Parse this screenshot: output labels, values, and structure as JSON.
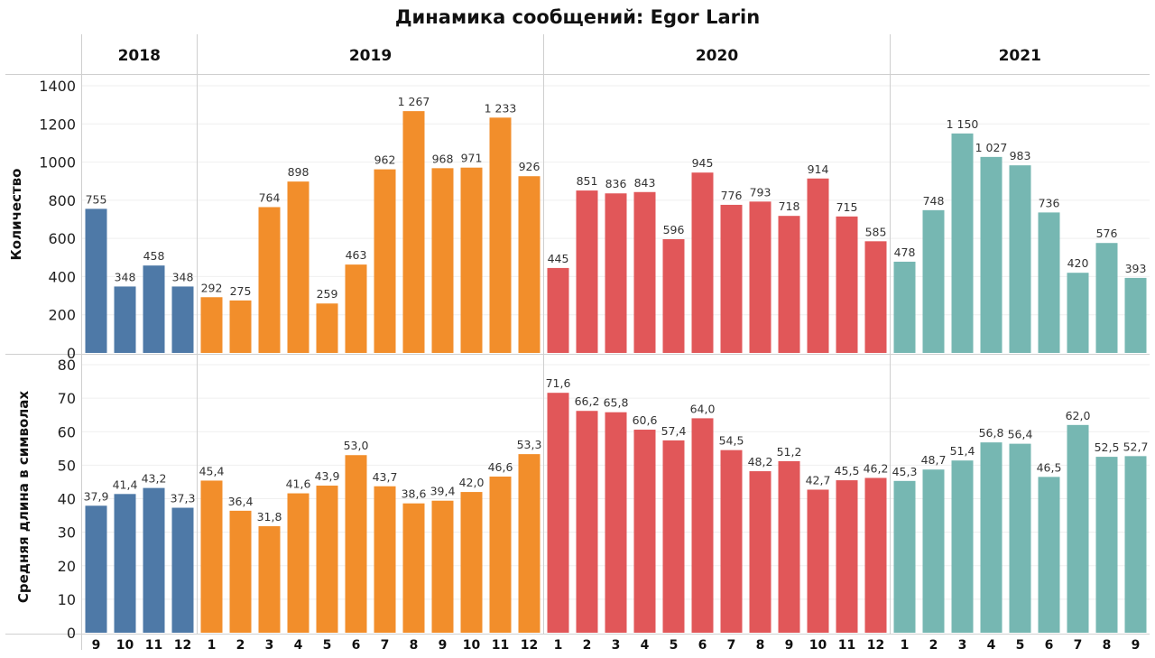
{
  "chart_data": {
    "type": "bar",
    "title": "Динамика сообщений: Egor Larin",
    "years": [
      {
        "label": "2018",
        "color": "#4E79A7",
        "months": [
          "9",
          "10",
          "11",
          "12"
        ]
      },
      {
        "label": "2019",
        "color": "#F28E2B",
        "months": [
          "1",
          "2",
          "3",
          "4",
          "5",
          "6",
          "7",
          "8",
          "9",
          "10",
          "11",
          "12"
        ]
      },
      {
        "label": "2020",
        "color": "#E15759",
        "months": [
          "1",
          "2",
          "3",
          "4",
          "5",
          "6",
          "7",
          "8",
          "9",
          "10",
          "11",
          "12"
        ]
      },
      {
        "label": "2021",
        "color": "#76B7B2",
        "months": [
          "1",
          "2",
          "3",
          "4",
          "5",
          "6",
          "7",
          "8",
          "9"
        ]
      }
    ],
    "panels": [
      {
        "ylabel": "Количество",
        "ylim": [
          0,
          1400
        ],
        "ticks": [
          "1400",
          "1200",
          "1000",
          "800",
          "600",
          "400",
          "200",
          "0"
        ],
        "values": [
          755,
          348,
          458,
          348,
          292,
          275,
          764,
          898,
          259,
          463,
          962,
          1267,
          968,
          971,
          1233,
          926,
          445,
          851,
          836,
          843,
          596,
          945,
          776,
          793,
          718,
          914,
          715,
          585,
          478,
          748,
          1150,
          1027,
          983,
          736,
          420,
          576,
          393
        ],
        "labels": [
          "755",
          "348",
          "458",
          "348",
          "292",
          "275",
          "764",
          "898",
          "259",
          "463",
          "962",
          "1 267",
          "968",
          "971",
          "1 233",
          "926",
          "445",
          "851",
          "836",
          "843",
          "596",
          "945",
          "776",
          "793",
          "718",
          "914",
          "715",
          "585",
          "478",
          "748",
          "1 150",
          "1 027",
          "983",
          "736",
          "420",
          "576",
          "393"
        ]
      },
      {
        "ylabel": "Средняя длина в символах",
        "ylim": [
          0,
          80
        ],
        "ticks": [
          "80",
          "70",
          "60",
          "50",
          "40",
          "30",
          "20",
          "10",
          "0"
        ],
        "values": [
          37.9,
          41.4,
          43.2,
          37.3,
          45.4,
          36.4,
          31.8,
          41.6,
          43.9,
          53.0,
          43.7,
          38.6,
          39.4,
          42.0,
          46.6,
          53.3,
          71.6,
          66.2,
          65.8,
          60.6,
          57.4,
          64.0,
          54.5,
          48.2,
          51.2,
          42.7,
          45.5,
          46.2,
          45.3,
          48.7,
          51.4,
          56.8,
          56.4,
          46.5,
          62.0,
          52.5,
          52.7
        ],
        "labels": [
          "37,9",
          "41,4",
          "43,2",
          "37,3",
          "45,4",
          "36,4",
          "31,8",
          "41,6",
          "43,9",
          "53,0",
          "43,7",
          "38,6",
          "39,4",
          "42,0",
          "46,6",
          "53,3",
          "71,6",
          "66,2",
          "65,8",
          "60,6",
          "57,4",
          "64,0",
          "54,5",
          "48,2",
          "51,2",
          "42,7",
          "45,5",
          "46,2",
          "45,3",
          "48,7",
          "51,4",
          "56,8",
          "56,4",
          "46,5",
          "62,0",
          "52,5",
          "52,7"
        ]
      }
    ],
    "grid": true
  }
}
